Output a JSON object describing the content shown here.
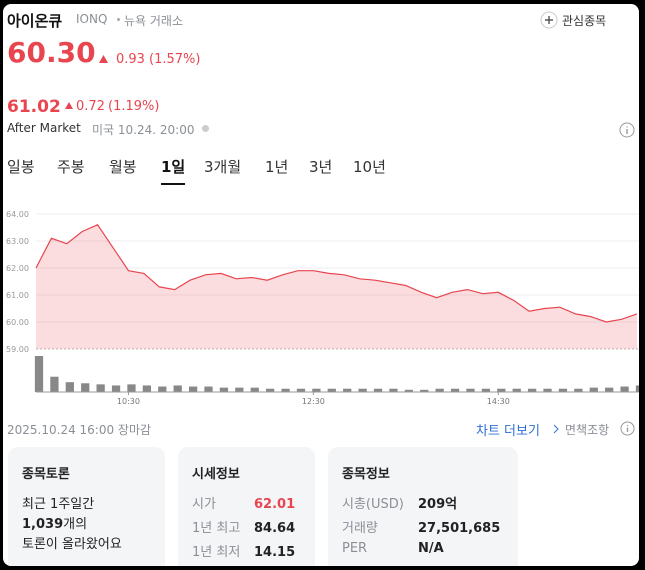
{
  "header": {
    "name": "아이온큐",
    "ticker": "IONQ",
    "exchange": "뉴욕 거래소",
    "watch": "관심종목"
  },
  "price": {
    "value": "60.30",
    "change": "0.93",
    "change_pct": "(1.57%)"
  },
  "after_market": {
    "price": "61.02",
    "change": "0.72",
    "change_pct": "(1.19%)",
    "label": "After Market",
    "time": "미국 10.24. 20:00"
  },
  "tabs": [
    "일봉",
    "주봉",
    "월봉",
    "1일",
    "3개월",
    "1년",
    "3년",
    "10년"
  ],
  "active_tab": 3,
  "chart": {
    "type": "line",
    "color": "#e8454f",
    "x": [
      "09:30",
      "09:40",
      "09:50",
      "10:00",
      "10:10",
      "10:20",
      "10:30",
      "10:40",
      "10:50",
      "11:00",
      "11:10",
      "11:20",
      "11:30",
      "11:40",
      "11:50",
      "12:00",
      "12:10",
      "12:20",
      "12:30",
      "12:40",
      "12:50",
      "13:00",
      "13:10",
      "13:20",
      "13:30",
      "13:40",
      "13:50",
      "14:00",
      "14:10",
      "14:20",
      "14:30",
      "14:40",
      "14:50",
      "15:00",
      "15:10",
      "15:20",
      "15:30",
      "15:40",
      "15:50",
      "16:00"
    ],
    "values": [
      62.0,
      63.1,
      62.9,
      63.35,
      63.6,
      62.75,
      61.9,
      61.8,
      61.3,
      61.2,
      61.55,
      61.75,
      61.8,
      61.6,
      61.65,
      61.55,
      61.75,
      61.9,
      61.9,
      61.8,
      61.75,
      61.6,
      61.55,
      61.45,
      61.35,
      61.1,
      60.9,
      61.1,
      61.2,
      61.05,
      61.1,
      60.8,
      60.4,
      60.5,
      60.55,
      60.3,
      60.2,
      60.0,
      60.1,
      60.3
    ],
    "volume": [
      33,
      14,
      9,
      8,
      7,
      6,
      7,
      6,
      5,
      6,
      5,
      5,
      4,
      4,
      4,
      3,
      3,
      3,
      3,
      3,
      3,
      3,
      3,
      3,
      2,
      2,
      3,
      3,
      3,
      3,
      3,
      3,
      3,
      3,
      3,
      3,
      4,
      4,
      5,
      6
    ],
    "ylim": [
      59,
      64
    ],
    "yticks": [
      {
        "value": 59,
        "label": "59.00"
      },
      {
        "value": 60,
        "label": "60.00"
      },
      {
        "value": 61,
        "label": "61.00"
      },
      {
        "value": 62,
        "label": "62.00"
      },
      {
        "value": 63,
        "label": "63.00"
      },
      {
        "value": 64,
        "label": "64.00"
      }
    ],
    "xticks": [
      "10:30",
      "12:30",
      "14:30"
    ],
    "grid": true
  },
  "status": "2025.10.24 16:00 장마감",
  "links": {
    "more": "차트 더보기",
    "disclaimer": "면책조항"
  },
  "cards": {
    "discussion": {
      "title": "종목토론",
      "line1": "최근 1주일간",
      "count": "1,039",
      "line2_suffix": "개의",
      "line3": "토론이 올라왔어요"
    },
    "quote": {
      "title": "시세정보",
      "rows": [
        [
          "시가",
          "62.01"
        ],
        [
          "1년 최고",
          "84.64"
        ],
        [
          "1년 최저",
          "14.15"
        ]
      ]
    },
    "info": {
      "title": "종목정보",
      "rows": [
        [
          "시총(USD)",
          "209억"
        ],
        [
          "거래량",
          "27,501,685"
        ],
        [
          "PER",
          "N/A"
        ]
      ]
    }
  }
}
